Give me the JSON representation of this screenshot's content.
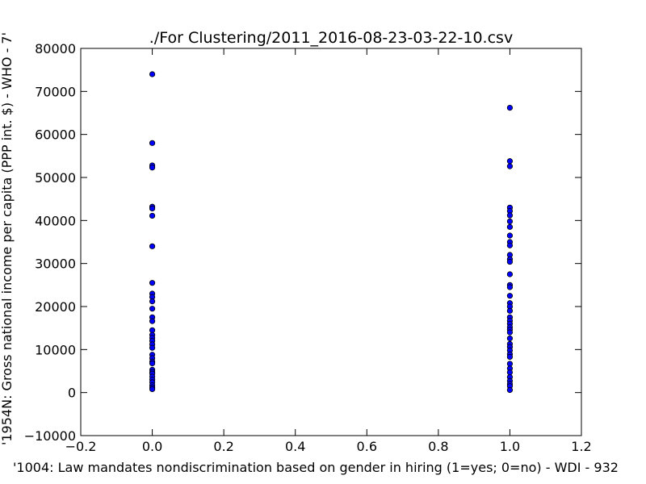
{
  "chart_data": {
    "type": "scatter",
    "title": "./For Clustering/2011_2016-08-23-03-22-10.csv",
    "xlabel": "'1004: Law mandates nondiscrimination based on gender in hiring  (1=yes; 0=no) - WDI - 932",
    "ylabel": "'1954N: Gross national income per capita (PPP int. $) - WHO - 7'",
    "xlim": [
      -0.2,
      1.2
    ],
    "ylim": [
      -10000,
      80000
    ],
    "x_ticks": [
      "−0.2",
      "0.0",
      "0.2",
      "0.4",
      "0.6",
      "0.8",
      "1.0",
      "1.2"
    ],
    "x_tick_values": [
      -0.2,
      0.0,
      0.2,
      0.4,
      0.6,
      0.8,
      1.0,
      1.2
    ],
    "y_ticks": [
      "−10000",
      "0",
      "10000",
      "20000",
      "30000",
      "40000",
      "50000",
      "60000",
      "70000",
      "80000"
    ],
    "y_tick_values": [
      -10000,
      0,
      10000,
      20000,
      30000,
      40000,
      50000,
      60000,
      70000,
      80000
    ],
    "grid": false,
    "marker_color": "#0000ff",
    "series": [
      {
        "points": [
          [
            0,
            74000
          ],
          [
            0,
            58000
          ],
          [
            0,
            52800
          ],
          [
            0,
            52300
          ],
          [
            0,
            43200
          ],
          [
            0,
            42800
          ],
          [
            0,
            41100
          ],
          [
            0,
            34000
          ],
          [
            0,
            25500
          ],
          [
            0,
            23000
          ],
          [
            0,
            22200
          ],
          [
            0,
            21200
          ],
          [
            0,
            19500
          ],
          [
            0,
            17500
          ],
          [
            0,
            16600
          ],
          [
            0,
            14500
          ],
          [
            0,
            13400
          ],
          [
            0,
            12700
          ],
          [
            0,
            12000
          ],
          [
            0,
            11200
          ],
          [
            0,
            10400
          ],
          [
            0,
            8800
          ],
          [
            0,
            8000
          ],
          [
            0,
            7200
          ],
          [
            0,
            6800
          ],
          [
            0,
            5300
          ],
          [
            0,
            4800
          ],
          [
            0,
            4400
          ],
          [
            0,
            3700
          ],
          [
            0,
            3000
          ],
          [
            0,
            2400
          ],
          [
            0,
            1700
          ],
          [
            0,
            1200
          ],
          [
            0,
            800
          ],
          [
            1,
            66200
          ],
          [
            1,
            53800
          ],
          [
            1,
            52600
          ],
          [
            1,
            43000
          ],
          [
            1,
            42200
          ],
          [
            1,
            41200
          ],
          [
            1,
            39800
          ],
          [
            1,
            38500
          ],
          [
            1,
            36500
          ],
          [
            1,
            35000
          ],
          [
            1,
            34200
          ],
          [
            1,
            32000
          ],
          [
            1,
            31000
          ],
          [
            1,
            30400
          ],
          [
            1,
            27500
          ],
          [
            1,
            25000
          ],
          [
            1,
            24500
          ],
          [
            1,
            22500
          ],
          [
            1,
            20800
          ],
          [
            1,
            20000
          ],
          [
            1,
            19000
          ],
          [
            1,
            17500
          ],
          [
            1,
            16700
          ],
          [
            1,
            16000
          ],
          [
            1,
            15200
          ],
          [
            1,
            14600
          ],
          [
            1,
            14000
          ],
          [
            1,
            12600
          ],
          [
            1,
            11300
          ],
          [
            1,
            10600
          ],
          [
            1,
            9800
          ],
          [
            1,
            8900
          ],
          [
            1,
            8300
          ],
          [
            1,
            6700
          ],
          [
            1,
            5600
          ],
          [
            1,
            4700
          ],
          [
            1,
            3600
          ],
          [
            1,
            2700
          ],
          [
            1,
            2000
          ],
          [
            1,
            1500
          ],
          [
            1,
            600
          ]
        ]
      }
    ]
  }
}
